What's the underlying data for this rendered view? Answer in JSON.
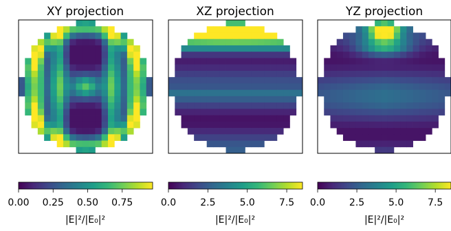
{
  "colors": {
    "frame": "#000000",
    "background": "#ffffff",
    "viridis": [
      "#440154",
      "#482878",
      "#3e4989",
      "#31688e",
      "#26828e",
      "#1f9e89",
      "#35b779",
      "#6ece58",
      "#b5de2b",
      "#fde725"
    ]
  },
  "chart_data": [
    {
      "type": "heatmap",
      "title": "XY projection",
      "grid_size": 21,
      "mask": "circular",
      "ticks": false,
      "colorbar": {
        "min": 0.0,
        "max": 0.97,
        "ticks": [
          "0.00",
          "0.25",
          "0.50",
          "0.75"
        ],
        "tick_values": [
          0,
          0.25,
          0.5,
          0.75
        ],
        "label": "|E|²/|E₀|²"
      },
      "pattern": "xy"
    },
    {
      "type": "heatmap",
      "title": "XZ projection",
      "grid_size": 21,
      "mask": "circular",
      "ticks": false,
      "colorbar": {
        "min": 0.0,
        "max": 8.5,
        "ticks": [
          "0.0",
          "2.5",
          "5.0",
          "7.5"
        ],
        "tick_values": [
          0,
          2.5,
          5,
          7.5
        ],
        "label": "|E|²/|E₀|²"
      },
      "pattern": "xz"
    },
    {
      "type": "heatmap",
      "title": "YZ projection",
      "grid_size": 21,
      "mask": "circular",
      "ticks": false,
      "colorbar": {
        "min": 0.0,
        "max": 8.5,
        "ticks": [
          "0.0",
          "2.5",
          "5.0",
          "7.5"
        ],
        "tick_values": [
          0,
          2.5,
          5,
          7.5
        ],
        "label": "|E|²/|E₀|²"
      },
      "pattern": "yz"
    }
  ]
}
